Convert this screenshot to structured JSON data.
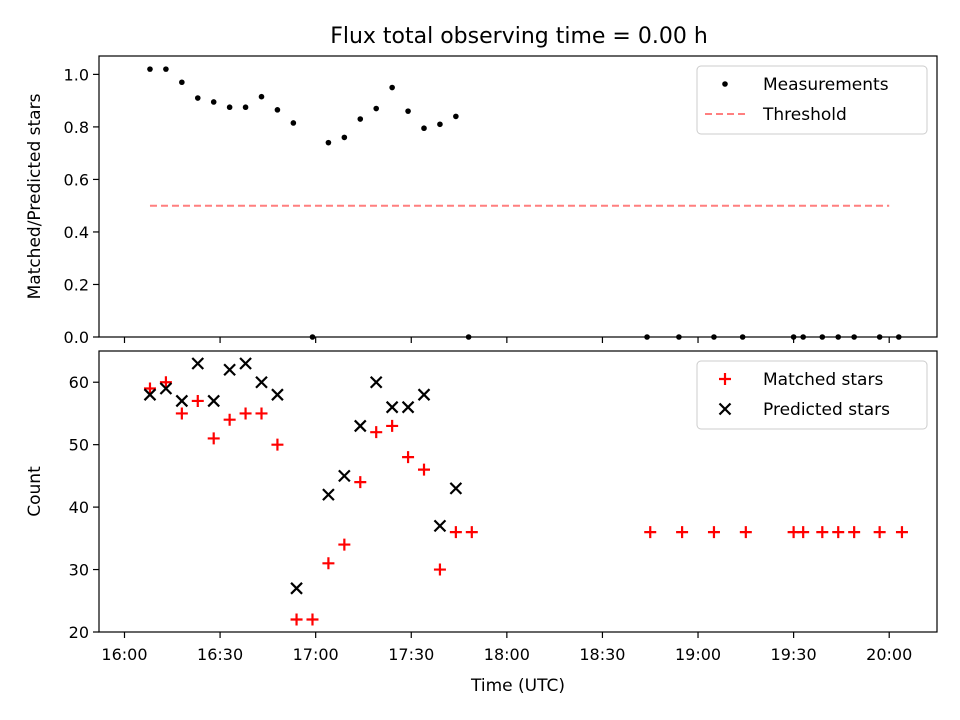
{
  "figure_title": "Flux total observing time = 0.00 h",
  "chart_data": [
    {
      "type": "scatter",
      "title": "",
      "xlabel": "",
      "ylabel": "Matched/Predicted stars",
      "x_axis_type": "time",
      "xlim": [
        "15:52",
        "20:15"
      ],
      "ylim": [
        0,
        1.07
      ],
      "yticks": [
        "0.0",
        "0.2",
        "0.4",
        "0.6",
        "0.8",
        "1.0"
      ],
      "legend_position": "upper right",
      "grid": false,
      "series": [
        {
          "name": "Measurements",
          "marker": "dot",
          "color": "#000000",
          "points": [
            {
              "x": "16:08",
              "y": 1.02
            },
            {
              "x": "16:13",
              "y": 1.02
            },
            {
              "x": "16:18",
              "y": 0.97
            },
            {
              "x": "16:23",
              "y": 0.91
            },
            {
              "x": "16:28",
              "y": 0.895
            },
            {
              "x": "16:33",
              "y": 0.875
            },
            {
              "x": "16:38",
              "y": 0.875
            },
            {
              "x": "16:43",
              "y": 0.915
            },
            {
              "x": "16:48",
              "y": 0.865
            },
            {
              "x": "16:53",
              "y": 0.815
            },
            {
              "x": "16:59",
              "y": 0.0
            },
            {
              "x": "17:04",
              "y": 0.74
            },
            {
              "x": "17:09",
              "y": 0.76
            },
            {
              "x": "17:14",
              "y": 0.83
            },
            {
              "x": "17:19",
              "y": 0.87
            },
            {
              "x": "17:24",
              "y": 0.95
            },
            {
              "x": "17:29",
              "y": 0.86
            },
            {
              "x": "17:34",
              "y": 0.795
            },
            {
              "x": "17:39",
              "y": 0.81
            },
            {
              "x": "17:44",
              "y": 0.84
            },
            {
              "x": "17:48",
              "y": 0.0
            },
            {
              "x": "18:44",
              "y": 0.0
            },
            {
              "x": "18:54",
              "y": 0.0
            },
            {
              "x": "19:05",
              "y": 0.0
            },
            {
              "x": "19:14",
              "y": 0.0
            },
            {
              "x": "19:30",
              "y": 0.0
            },
            {
              "x": "19:33",
              "y": 0.0
            },
            {
              "x": "19:39",
              "y": 0.0
            },
            {
              "x": "19:44",
              "y": 0.0
            },
            {
              "x": "19:49",
              "y": 0.0
            },
            {
              "x": "19:57",
              "y": 0.0
            },
            {
              "x": "20:03",
              "y": 0.0
            }
          ]
        },
        {
          "name": "Threshold",
          "line_style": "dashed",
          "color": "#ff7f7f",
          "points": [
            {
              "x": "16:08",
              "y": 0.5
            },
            {
              "x": "20:00",
              "y": 0.5
            }
          ]
        }
      ]
    },
    {
      "type": "scatter",
      "title": "",
      "xlabel": "Time (UTC)",
      "ylabel": "Count",
      "x_axis_type": "time",
      "xlim": [
        "15:52",
        "20:15"
      ],
      "ylim": [
        20,
        65
      ],
      "yticks": [
        "20",
        "30",
        "40",
        "50",
        "60"
      ],
      "xticks": [
        "16:00",
        "16:30",
        "17:00",
        "17:30",
        "18:00",
        "18:30",
        "19:00",
        "19:30",
        "20:00"
      ],
      "legend_position": "upper right",
      "grid": false,
      "series": [
        {
          "name": "Matched stars",
          "marker": "plus",
          "color": "#ff0000",
          "points": [
            {
              "x": "16:08",
              "y": 59
            },
            {
              "x": "16:13",
              "y": 60
            },
            {
              "x": "16:18",
              "y": 55
            },
            {
              "x": "16:23",
              "y": 57
            },
            {
              "x": "16:28",
              "y": 51
            },
            {
              "x": "16:33",
              "y": 54
            },
            {
              "x": "16:38",
              "y": 55
            },
            {
              "x": "16:43",
              "y": 55
            },
            {
              "x": "16:48",
              "y": 50
            },
            {
              "x": "16:54",
              "y": 22
            },
            {
              "x": "16:59",
              "y": 22
            },
            {
              "x": "17:04",
              "y": 31
            },
            {
              "x": "17:09",
              "y": 34
            },
            {
              "x": "17:14",
              "y": 44
            },
            {
              "x": "17:19",
              "y": 52
            },
            {
              "x": "17:24",
              "y": 53
            },
            {
              "x": "17:29",
              "y": 48
            },
            {
              "x": "17:34",
              "y": 46
            },
            {
              "x": "17:39",
              "y": 30
            },
            {
              "x": "17:44",
              "y": 36
            },
            {
              "x": "17:49",
              "y": 36
            },
            {
              "x": "18:45",
              "y": 36
            },
            {
              "x": "18:55",
              "y": 36
            },
            {
              "x": "19:05",
              "y": 36
            },
            {
              "x": "19:15",
              "y": 36
            },
            {
              "x": "19:30",
              "y": 36
            },
            {
              "x": "19:33",
              "y": 36
            },
            {
              "x": "19:39",
              "y": 36
            },
            {
              "x": "19:44",
              "y": 36
            },
            {
              "x": "19:49",
              "y": 36
            },
            {
              "x": "19:57",
              "y": 36
            },
            {
              "x": "20:04",
              "y": 36
            }
          ]
        },
        {
          "name": "Predicted stars",
          "marker": "x",
          "color": "#000000",
          "points": [
            {
              "x": "16:08",
              "y": 58
            },
            {
              "x": "16:13",
              "y": 59
            },
            {
              "x": "16:18",
              "y": 57
            },
            {
              "x": "16:23",
              "y": 63
            },
            {
              "x": "16:28",
              "y": 57
            },
            {
              "x": "16:33",
              "y": 62
            },
            {
              "x": "16:38",
              "y": 63
            },
            {
              "x": "16:43",
              "y": 60
            },
            {
              "x": "16:48",
              "y": 58
            },
            {
              "x": "16:54",
              "y": 27
            },
            {
              "x": "17:04",
              "y": 42
            },
            {
              "x": "17:09",
              "y": 45
            },
            {
              "x": "17:14",
              "y": 53
            },
            {
              "x": "17:19",
              "y": 60
            },
            {
              "x": "17:24",
              "y": 56
            },
            {
              "x": "17:29",
              "y": 56
            },
            {
              "x": "17:34",
              "y": 58
            },
            {
              "x": "17:39",
              "y": 37
            },
            {
              "x": "17:44",
              "y": 43
            }
          ]
        }
      ]
    }
  ]
}
